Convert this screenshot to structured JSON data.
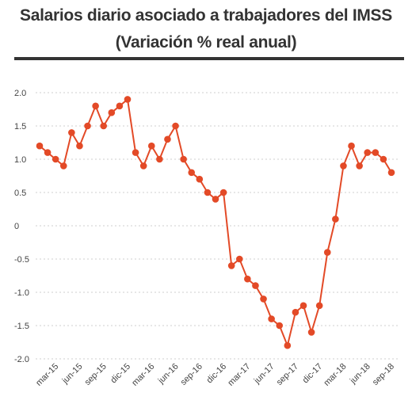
{
  "chart_data": {
    "type": "line",
    "title": "Salarios diario asociado a trabajadores del IMSS",
    "subtitle": "(Variación % real anual)",
    "xlabel": "",
    "ylabel": "",
    "ylim": [
      -2.0,
      2.0
    ],
    "yticks": [
      2.0,
      1.5,
      1.0,
      0.5,
      0,
      -0.5,
      -1.0,
      -1.5,
      -2.0
    ],
    "ytick_labels": [
      "2.0",
      "1.5",
      "1.0",
      "0.5",
      "0",
      "-0.5",
      "-1.0",
      "-1.5",
      "-2.0"
    ],
    "grid": true,
    "legend": "none",
    "color": "#e34a27",
    "x": [
      "ene-15",
      "feb-15",
      "mar-15",
      "abr-15",
      "may-15",
      "jun-15",
      "jul-15",
      "ago-15",
      "sep-15",
      "oct-15",
      "nov-15",
      "dic-15",
      "ene-16",
      "feb-16",
      "mar-16",
      "abr-16",
      "may-16",
      "jun-16",
      "jul-16",
      "ago-16",
      "sep-16",
      "oct-16",
      "nov-16",
      "dic-16",
      "ene-17",
      "feb-17",
      "mar-17",
      "abr-17",
      "may-17",
      "jun-17",
      "jul-17",
      "ago-17",
      "sep-17",
      "oct-17",
      "nov-17",
      "dic-17",
      "ene-18",
      "feb-18",
      "mar-18",
      "abr-18",
      "may-18",
      "jun-18",
      "jul-18",
      "ago-18",
      "sep-18"
    ],
    "values": [
      1.2,
      1.1,
      1.0,
      0.9,
      1.4,
      1.2,
      1.5,
      1.8,
      1.5,
      1.7,
      1.8,
      1.9,
      1.1,
      0.9,
      1.2,
      1.0,
      1.3,
      1.5,
      1.0,
      0.8,
      0.7,
      0.5,
      0.4,
      0.5,
      -0.6,
      -0.5,
      -0.8,
      -0.9,
      -1.1,
      -1.4,
      -1.5,
      -1.8,
      -1.3,
      -1.2,
      -1.6,
      -1.2,
      -0.4,
      0.1,
      0.9,
      1.2,
      0.9,
      1.1,
      1.1,
      1.0,
      0.8
    ],
    "xtick_labels": [
      {
        "i": 2,
        "label": "mar-15"
      },
      {
        "i": 5,
        "label": "jun-15"
      },
      {
        "i": 8,
        "label": "sep-15"
      },
      {
        "i": 11,
        "label": "dic-15"
      },
      {
        "i": 14,
        "label": "mar-16"
      },
      {
        "i": 17,
        "label": "jun-16"
      },
      {
        "i": 20,
        "label": "sep-16"
      },
      {
        "i": 23,
        "label": "dic-16"
      },
      {
        "i": 26,
        "label": "mar-17"
      },
      {
        "i": 29,
        "label": "jun-17"
      },
      {
        "i": 32,
        "label": "sep-17"
      },
      {
        "i": 35,
        "label": "dic-17"
      },
      {
        "i": 38,
        "label": "mar-18"
      },
      {
        "i": 41,
        "label": "jun-18"
      },
      {
        "i": 44,
        "label": "sep-18"
      }
    ]
  }
}
